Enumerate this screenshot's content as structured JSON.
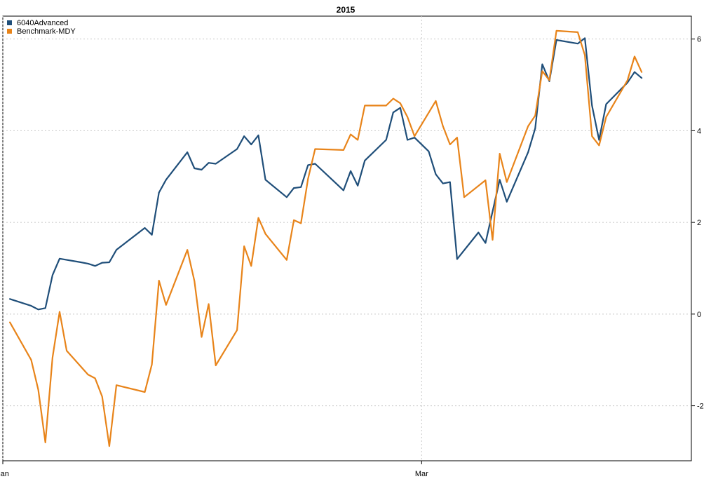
{
  "chart_data": {
    "type": "line",
    "title": "2015",
    "xlabel": "",
    "ylabel": "",
    "x_axis": {
      "type": "date",
      "range": [
        "2015-01-01",
        "2015-04-08"
      ],
      "ticks": [
        {
          "date": "2015-01-01",
          "label": "Jan"
        },
        {
          "date": "2015-03-01",
          "label": "Mar"
        }
      ]
    },
    "y_axis": {
      "side": "right",
      "ylim": [
        -3.2,
        6.5
      ],
      "ticks": [
        -2,
        0,
        2,
        4,
        6
      ],
      "tick_labels": [
        "-2",
        "0",
        "2",
        "4",
        "6"
      ]
    },
    "grid": true,
    "legend": "top-left",
    "series": [
      {
        "name": "6040Advanced",
        "color": "#1f4e79",
        "points": [
          [
            "2015-01-02",
            0.33
          ],
          [
            "2015-01-05",
            0.18
          ],
          [
            "2015-01-06",
            0.1
          ],
          [
            "2015-01-07",
            0.13
          ],
          [
            "2015-01-08",
            0.85
          ],
          [
            "2015-01-09",
            1.21
          ],
          [
            "2015-01-12",
            1.13
          ],
          [
            "2015-01-13",
            1.1
          ],
          [
            "2015-01-14",
            1.05
          ],
          [
            "2015-01-15",
            1.12
          ],
          [
            "2015-01-16",
            1.13
          ],
          [
            "2015-01-17",
            1.4
          ],
          [
            "2015-01-21",
            1.88
          ],
          [
            "2015-01-22",
            1.73
          ],
          [
            "2015-01-23",
            2.65
          ],
          [
            "2015-01-24",
            2.93
          ],
          [
            "2015-01-27",
            3.53
          ],
          [
            "2015-01-28",
            3.18
          ],
          [
            "2015-01-29",
            3.15
          ],
          [
            "2015-01-30",
            3.3
          ],
          [
            "2015-01-31",
            3.28
          ],
          [
            "2015-02-03",
            3.6
          ],
          [
            "2015-02-04",
            3.88
          ],
          [
            "2015-02-05",
            3.7
          ],
          [
            "2015-02-06",
            3.9
          ],
          [
            "2015-02-07",
            2.93
          ],
          [
            "2015-02-10",
            2.55
          ],
          [
            "2015-02-11",
            2.75
          ],
          [
            "2015-02-12",
            2.77
          ],
          [
            "2015-02-13",
            3.25
          ],
          [
            "2015-02-14",
            3.28
          ],
          [
            "2015-02-18",
            2.7
          ],
          [
            "2015-02-19",
            3.12
          ],
          [
            "2015-02-20",
            2.8
          ],
          [
            "2015-02-21",
            3.35
          ],
          [
            "2015-02-24",
            3.8
          ],
          [
            "2015-02-25",
            4.4
          ],
          [
            "2015-02-26",
            4.5
          ],
          [
            "2015-02-27",
            3.8
          ],
          [
            "2015-02-28",
            3.85
          ],
          [
            "2015-03-02",
            3.55
          ],
          [
            "2015-03-03",
            3.05
          ],
          [
            "2015-03-04",
            2.85
          ],
          [
            "2015-03-05",
            2.88
          ],
          [
            "2015-03-06",
            1.2
          ],
          [
            "2015-03-09",
            1.78
          ],
          [
            "2015-03-10",
            1.55
          ],
          [
            "2015-03-12",
            2.93
          ],
          [
            "2015-03-13",
            2.45
          ],
          [
            "2015-03-16",
            3.53
          ],
          [
            "2015-03-17",
            4.05
          ],
          [
            "2015-03-18",
            5.45
          ],
          [
            "2015-03-19",
            5.08
          ],
          [
            "2015-03-20",
            5.98
          ],
          [
            "2015-03-23",
            5.9
          ],
          [
            "2015-03-24",
            6.02
          ],
          [
            "2015-03-25",
            4.55
          ],
          [
            "2015-03-26",
            3.8
          ],
          [
            "2015-03-27",
            4.58
          ],
          [
            "2015-03-30",
            5.05
          ],
          [
            "2015-03-31",
            5.28
          ],
          [
            "2015-04-01",
            5.15
          ]
        ]
      },
      {
        "name": "Benchmark-MDY",
        "color": "#e8841a",
        "points": [
          [
            "2015-01-02",
            -0.18
          ],
          [
            "2015-01-05",
            -1.0
          ],
          [
            "2015-01-06",
            -1.65
          ],
          [
            "2015-01-07",
            -2.8
          ],
          [
            "2015-01-08",
            -0.95
          ],
          [
            "2015-01-09",
            0.05
          ],
          [
            "2015-01-10",
            -0.8
          ],
          [
            "2015-01-13",
            -1.32
          ],
          [
            "2015-01-14",
            -1.4
          ],
          [
            "2015-01-15",
            -1.8
          ],
          [
            "2015-01-16",
            -2.88
          ],
          [
            "2015-01-17",
            -1.55
          ],
          [
            "2015-01-21",
            -1.7
          ],
          [
            "2015-01-22",
            -1.1
          ],
          [
            "2015-01-23",
            0.73
          ],
          [
            "2015-01-24",
            0.2
          ],
          [
            "2015-01-27",
            1.4
          ],
          [
            "2015-01-28",
            0.72
          ],
          [
            "2015-01-29",
            -0.5
          ],
          [
            "2015-01-30",
            0.22
          ],
          [
            "2015-01-31",
            -1.12
          ],
          [
            "2015-02-03",
            -0.35
          ],
          [
            "2015-02-04",
            1.48
          ],
          [
            "2015-02-05",
            1.05
          ],
          [
            "2015-02-06",
            2.1
          ],
          [
            "2015-02-07",
            1.75
          ],
          [
            "2015-02-10",
            1.18
          ],
          [
            "2015-02-11",
            2.05
          ],
          [
            "2015-02-12",
            1.98
          ],
          [
            "2015-02-13",
            2.95
          ],
          [
            "2015-02-14",
            3.6
          ],
          [
            "2015-02-18",
            3.58
          ],
          [
            "2015-02-19",
            3.92
          ],
          [
            "2015-02-20",
            3.8
          ],
          [
            "2015-02-21",
            4.55
          ],
          [
            "2015-02-24",
            4.55
          ],
          [
            "2015-02-25",
            4.7
          ],
          [
            "2015-02-26",
            4.6
          ],
          [
            "2015-02-27",
            4.3
          ],
          [
            "2015-02-28",
            3.88
          ],
          [
            "2015-03-03",
            4.65
          ],
          [
            "2015-03-04",
            4.1
          ],
          [
            "2015-03-05",
            3.7
          ],
          [
            "2015-03-06",
            3.85
          ],
          [
            "2015-03-07",
            2.55
          ],
          [
            "2015-03-10",
            2.92
          ],
          [
            "2015-03-11",
            1.62
          ],
          [
            "2015-03-12",
            3.5
          ],
          [
            "2015-03-13",
            2.88
          ],
          [
            "2015-03-16",
            4.1
          ],
          [
            "2015-03-17",
            4.33
          ],
          [
            "2015-03-18",
            5.3
          ],
          [
            "2015-03-19",
            5.1
          ],
          [
            "2015-03-20",
            6.18
          ],
          [
            "2015-03-23",
            6.15
          ],
          [
            "2015-03-24",
            5.65
          ],
          [
            "2015-03-25",
            3.88
          ],
          [
            "2015-03-26",
            3.68
          ],
          [
            "2015-03-27",
            4.3
          ],
          [
            "2015-03-30",
            5.1
          ],
          [
            "2015-03-31",
            5.62
          ],
          [
            "2015-04-01",
            5.28
          ]
        ]
      }
    ]
  }
}
